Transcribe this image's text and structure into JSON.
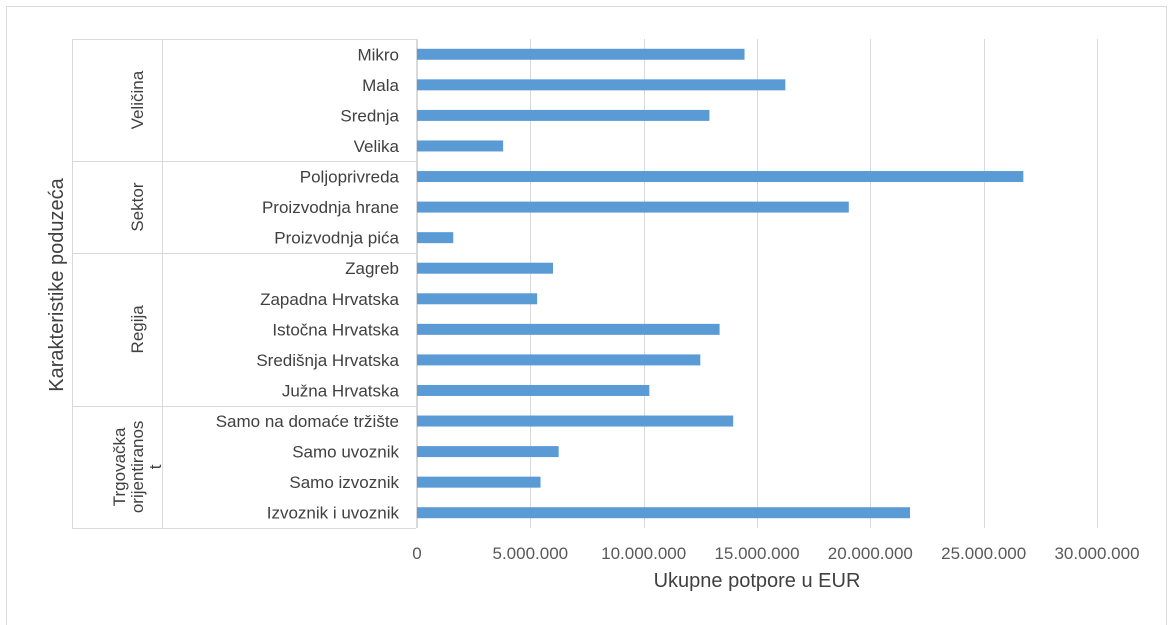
{
  "chart_data": {
    "type": "bar",
    "orientation": "horizontal",
    "xlabel": "Ukupne potpore u EUR",
    "ylabel": "Karakteristike poduzeća",
    "xlim": [
      0,
      30000000
    ],
    "x_ticks": [
      0,
      5000000,
      10000000,
      15000000,
      20000000,
      25000000,
      30000000
    ],
    "x_tick_labels": [
      "0",
      "5.000.000",
      "10.000.000",
      "15.000.000",
      "20.000.000",
      "25.000.000",
      "30.000.000"
    ],
    "grid": "vertical",
    "bar_color": "#5b9bd5",
    "groups": [
      {
        "label_lines": [
          "Veličina"
        ],
        "categories": [
          {
            "label": "Mikro",
            "value": 14450000
          },
          {
            "label": "Mala",
            "value": 16250000
          },
          {
            "label": "Srednja",
            "value": 12900000
          },
          {
            "label": "Velika",
            "value": 3800000
          }
        ]
      },
      {
        "label_lines": [
          "Sektor"
        ],
        "categories": [
          {
            "label": "Poljoprivreda",
            "value": 26750000
          },
          {
            "label": "Proizvodnja hrane",
            "value": 19050000
          },
          {
            "label": "Proizvodnja pića",
            "value": 1600000
          }
        ]
      },
      {
        "label_lines": [
          "Regija"
        ],
        "categories": [
          {
            "label": "Zagreb",
            "value": 6000000
          },
          {
            "label": "Zapadna Hrvatska",
            "value": 5300000
          },
          {
            "label": "Istočna Hrvatska",
            "value": 13350000
          },
          {
            "label": "Središnja Hrvatska",
            "value": 12500000
          },
          {
            "label": "Južna Hrvatska",
            "value": 10250000
          }
        ]
      },
      {
        "label_lines": [
          "Trgovačka",
          "orijentiranos",
          "t"
        ],
        "categories": [
          {
            "label": "Samo na domaće tržište",
            "value": 13950000
          },
          {
            "label": "Samo uvoznik",
            "value": 6250000
          },
          {
            "label": "Samo izvoznik",
            "value": 5450000
          },
          {
            "label": "Izvoznik i uvoznik",
            "value": 21750000
          }
        ]
      }
    ]
  }
}
